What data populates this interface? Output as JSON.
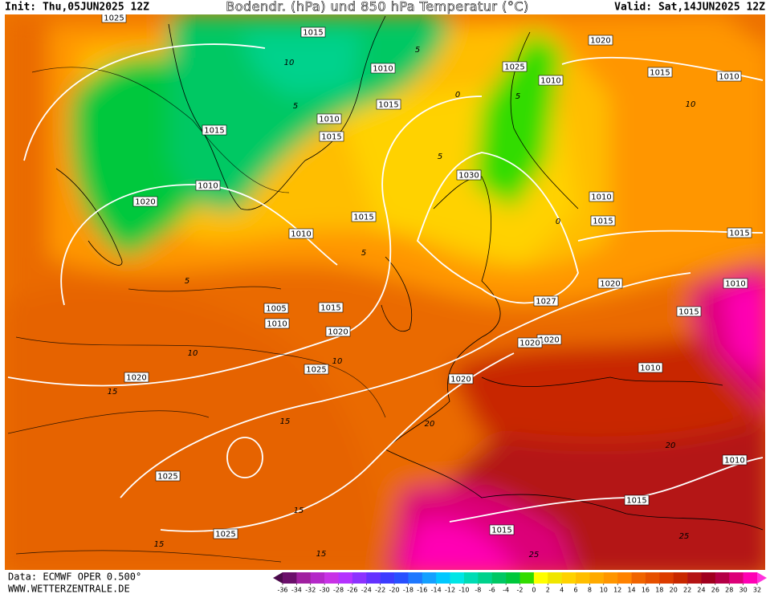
{
  "header": {
    "init": "Init: Thu,05JUN2025 12Z",
    "title": "Bodendr. (hPa) und 850 hPa Temperatur (°C)",
    "valid": "Valid: Sat,14JUN2025 12Z"
  },
  "footer": {
    "data_source": "Data: ECMWF OPER 0.500°",
    "website": "WWW.WETTERZENTRALE.DE"
  },
  "colorbar": {
    "labels": [
      -36,
      -34,
      -32,
      -30,
      -28,
      -26,
      -24,
      -22,
      -20,
      -18,
      -16,
      -14,
      -12,
      -10,
      -8,
      -6,
      -4,
      -2,
      0,
      2,
      4,
      6,
      8,
      10,
      12,
      14,
      16,
      18,
      20,
      22,
      24,
      26,
      28,
      30,
      32
    ],
    "colors": [
      "#4b0a4b",
      "#6b0f6b",
      "#a020a0",
      "#b428c8",
      "#c832e6",
      "#b432ff",
      "#8c32ff",
      "#6432ff",
      "#3c3cff",
      "#2850ff",
      "#1e78ff",
      "#14a0ff",
      "#00c8ff",
      "#00e6e6",
      "#00dcb4",
      "#00d28c",
      "#00c864",
      "#00c83c",
      "#32dc00",
      "#ffff00",
      "#f0e600",
      "#ffd200",
      "#ffbe00",
      "#ffaa00",
      "#ff9600",
      "#ff8200",
      "#f06400",
      "#e65000",
      "#dc3c00",
      "#c82800",
      "#b41414",
      "#a0001e",
      "#b40046",
      "#dc0078",
      "#ff00b4",
      "#ff32dc"
    ]
  },
  "isobar_labels": [
    "1025",
    "1015",
    "1010",
    "1015",
    "1010",
    "1015",
    "1015",
    "1010",
    "1020",
    "1030",
    "1015",
    "1010",
    "1025",
    "1010",
    "1015",
    "1010",
    "1020",
    "1010",
    "1015",
    "1015",
    "1020",
    "1010",
    "1027",
    "1015",
    "1005",
    "1015",
    "1010",
    "1020",
    "1020",
    "1020",
    "1025",
    "1020",
    "1020",
    "1010",
    "1025",
    "1015",
    "1010",
    "1015",
    "1025"
  ],
  "temperature_labels": [
    "10",
    "5",
    "0",
    "5",
    "5",
    "0",
    "5",
    "5",
    "10",
    "5",
    "5",
    "10",
    "10",
    "15",
    "15",
    "15",
    "20",
    "20",
    "25",
    "25",
    "15",
    "15"
  ]
}
